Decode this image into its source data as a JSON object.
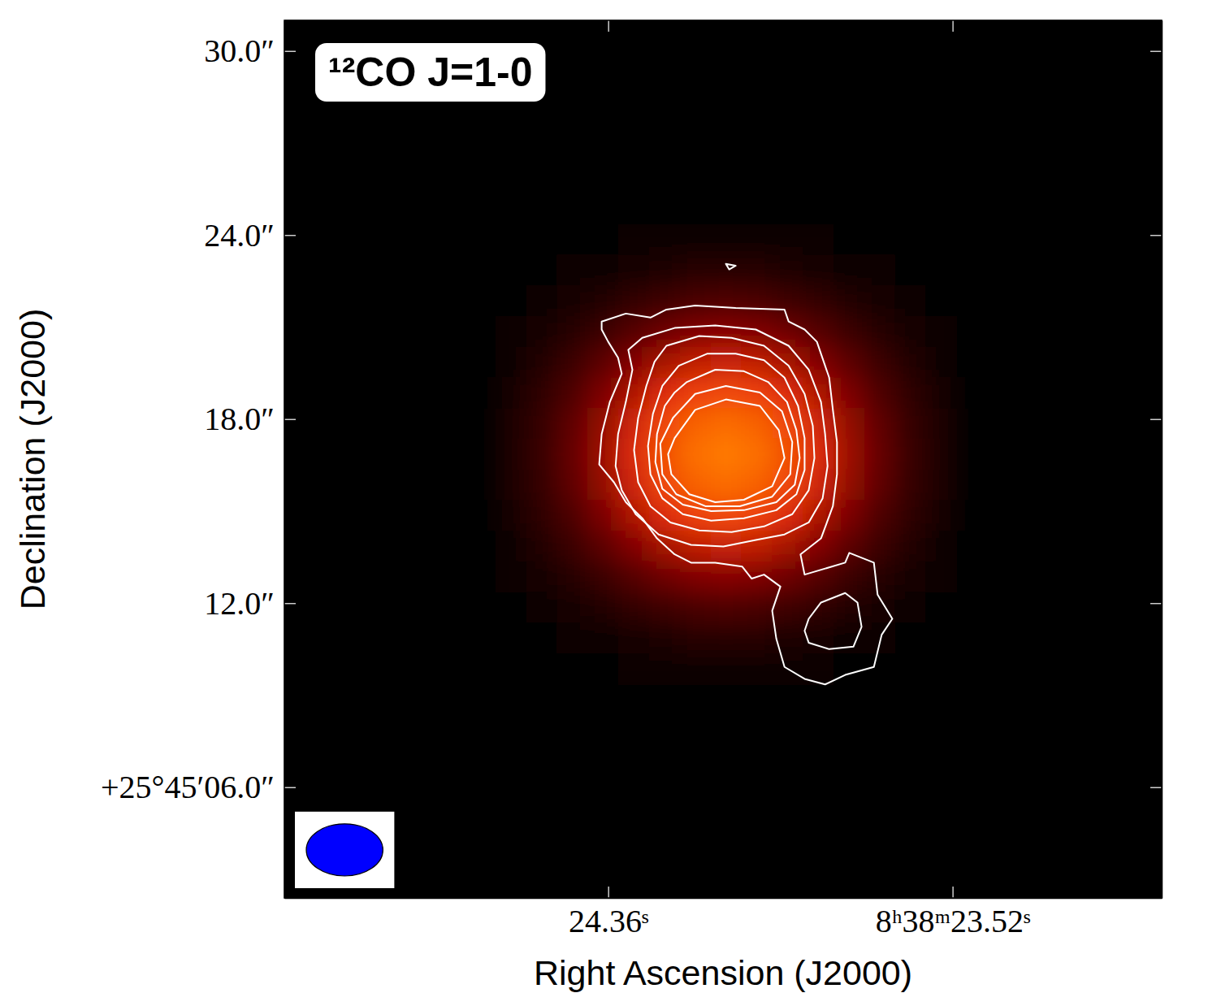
{
  "chart_data": {
    "type": "contour_image",
    "title": "¹²CO J=1-0",
    "x_label": "Right Ascension (J2000)",
    "y_label": "Declination (J2000)",
    "xlim": [
      25.15,
      23.01
    ],
    "ylim": [
      2.39,
      31.0
    ],
    "xticks": [
      {
        "value": 24.36,
        "label": "24.36ˢ"
      },
      {
        "value": 23.52,
        "label": "8ʰ38ᵐ23.52ˢ"
      }
    ],
    "yticks": [
      {
        "value": 6,
        "label": "+25°45′06.0″"
      },
      {
        "value": 12,
        "label": "12.0″"
      },
      {
        "value": 18,
        "label": "18.0″"
      },
      {
        "value": 24,
        "label": "24.0″"
      },
      {
        "value": 30,
        "label": "30.0″"
      }
    ],
    "image": {
      "x": [
        24.598,
        24.523,
        24.448,
        24.373,
        24.298,
        24.223,
        24.148,
        24.073,
        23.998,
        23.923,
        23.848,
        23.773,
        23.698,
        23.623,
        23.548
      ],
      "y": [
        23.86,
        22.86,
        21.86,
        20.86,
        19.86,
        18.86,
        17.86,
        16.86,
        15.86,
        14.86,
        13.86,
        12.86,
        11.86,
        10.86,
        9.86
      ],
      "values": [
        [
          0,
          0,
          0,
          0,
          0.001,
          0.001,
          0.002,
          0.002,
          0.002,
          0.001,
          0.001,
          0,
          0,
          0,
          0
        ],
        [
          0,
          0,
          0.001,
          0.002,
          0.004,
          0.007,
          0.01,
          0.011,
          0.01,
          0.007,
          0.004,
          0.002,
          0.001,
          0,
          0
        ],
        [
          0,
          0.001,
          0.003,
          0.008,
          0.017,
          0.029,
          0.04,
          0.044,
          0.04,
          0.029,
          0.017,
          0.008,
          0.003,
          0.001,
          0
        ],
        [
          0.001,
          0.003,
          0.01,
          0.026,
          0.053,
          0.089,
          0.122,
          0.135,
          0.122,
          0.089,
          0.053,
          0.026,
          0.01,
          0.003,
          0.001
        ],
        [
          0.002,
          0.008,
          0.025,
          0.062,
          0.128,
          0.215,
          0.293,
          0.325,
          0.293,
          0.215,
          0.128,
          0.062,
          0.025,
          0.008,
          0.002
        ],
        [
          0.004,
          0.015,
          0.046,
          0.116,
          0.24,
          0.402,
          0.548,
          0.607,
          0.548,
          0.402,
          0.24,
          0.116,
          0.046,
          0.015,
          0.004
        ],
        [
          0.005,
          0.021,
          0.067,
          0.168,
          0.348,
          0.584,
          0.796,
          0.882,
          0.796,
          0.584,
          0.348,
          0.168,
          0.067,
          0.021,
          0.005
        ],
        [
          0.006,
          0.024,
          0.076,
          0.191,
          0.395,
          0.662,
          0.902,
          1,
          0.902,
          0.662,
          0.395,
          0.191,
          0.076,
          0.024,
          0.006
        ],
        [
          0.005,
          0.021,
          0.067,
          0.168,
          0.348,
          0.584,
          0.796,
          0.882,
          0.796,
          0.584,
          0.348,
          0.168,
          0.067,
          0.021,
          0.005
        ],
        [
          0.004,
          0.015,
          0.046,
          0.116,
          0.24,
          0.402,
          0.548,
          0.607,
          0.548,
          0.402,
          0.24,
          0.116,
          0.046,
          0.015,
          0.004
        ],
        [
          0.002,
          0.008,
          0.025,
          0.062,
          0.128,
          0.215,
          0.293,
          0.325,
          0.293,
          0.215,
          0.128,
          0.062,
          0.025,
          0.008,
          0.002
        ],
        [
          0.001,
          0.003,
          0.01,
          0.026,
          0.053,
          0.089,
          0.122,
          0.135,
          0.122,
          0.089,
          0.053,
          0.026,
          0.01,
          0.003,
          0.001
        ],
        [
          0,
          0.001,
          0.003,
          0.008,
          0.017,
          0.029,
          0.04,
          0.044,
          0.04,
          0.029,
          0.017,
          0.008,
          0.003,
          0.001,
          0
        ],
        [
          0,
          0,
          0.001,
          0.002,
          0.004,
          0.007,
          0.01,
          0.011,
          0.01,
          0.007,
          0.004,
          0.002,
          0.001,
          0,
          0
        ],
        [
          0,
          0,
          0,
          0,
          0.001,
          0.001,
          0.002,
          0.002,
          0.002,
          0.001,
          0.001,
          0,
          0,
          0,
          0
        ]
      ],
      "zlim": [
        0,
        1
      ]
    },
    "contours": [
      {
        "x": [
          24.376,
          24.317,
          24.257,
          24.218,
          24.148,
          24.049,
          23.93,
          23.92,
          23.881,
          23.851,
          23.841,
          23.821,
          23.812,
          23.802,
          23.802,
          23.812,
          23.841,
          23.891,
          23.881,
          23.782,
          23.772,
          23.712,
          23.703,
          23.667,
          23.693,
          23.712,
          23.782,
          23.831,
          23.881,
          23.93,
          23.95,
          23.96,
          23.94,
          23.98,
          24.01,
          24.033,
          24.099,
          24.158,
          24.198,
          24.241,
          24.277,
          24.317,
          24.346,
          24.382,
          24.376,
          24.356,
          24.327,
          24.336,
          24.36,
          24.376
        ],
        "y": [
          21.18,
          21.44,
          21.31,
          21.57,
          21.7,
          21.62,
          21.57,
          21.18,
          20.92,
          20.52,
          20.13,
          19.35,
          18.3,
          17.25,
          16.2,
          15.16,
          14.11,
          13.59,
          12.93,
          13.32,
          13.64,
          13.32,
          12.28,
          11.49,
          10.97,
          9.92,
          9.66,
          9.35,
          9.53,
          9.92,
          10.84,
          11.75,
          12.54,
          12.93,
          12.8,
          13.19,
          13.32,
          13.32,
          13.59,
          14.11,
          14.77,
          15.29,
          15.94,
          16.52,
          17.51,
          18.56,
          19.48,
          20.0,
          20.52,
          20.92
        ]
      },
      {
        "x": [
          23.871,
          23.841,
          23.782,
          23.752,
          23.742,
          23.762,
          23.821,
          23.871,
          23.881
        ],
        "y": [
          11.49,
          12.02,
          12.33,
          12.02,
          11.23,
          10.58,
          10.5,
          10.71,
          11.1
        ]
      },
      {
        "x": [
          24.073,
          24.049,
          24.065
        ],
        "y": [
          23.06,
          23.0,
          22.88
        ]
      },
      {
        "x": [
          24.277,
          24.198,
          24.099,
          24.0,
          23.92,
          23.871,
          23.841,
          23.831,
          23.825,
          23.837,
          23.871,
          23.93,
          24.0,
          24.079,
          24.158,
          24.237,
          24.293,
          24.327,
          24.342,
          24.336,
          24.317,
          24.301,
          24.311
        ],
        "y": [
          20.65,
          20.97,
          21.05,
          20.92,
          20.39,
          19.61,
          18.56,
          17.51,
          16.47,
          15.42,
          14.63,
          14.24,
          14.06,
          13.85,
          13.9,
          14.24,
          14.9,
          15.68,
          16.47,
          17.51,
          18.56,
          19.61,
          20.26
        ]
      },
      {
        "x": [
          24.218,
          24.138,
          24.059,
          23.98,
          23.92,
          23.881,
          23.861,
          23.857,
          23.871,
          23.911,
          23.98,
          24.059,
          24.138,
          24.208,
          24.257,
          24.287,
          24.297,
          24.287,
          24.267,
          24.247
        ],
        "y": [
          20.39,
          20.71,
          20.65,
          20.39,
          19.74,
          18.82,
          17.78,
          16.73,
          15.68,
          14.9,
          14.5,
          14.32,
          14.37,
          14.63,
          15.16,
          15.94,
          16.99,
          18.04,
          19.08,
          19.87
        ]
      },
      {
        "x": [
          24.188,
          24.119,
          24.049,
          23.98,
          23.93,
          23.897,
          23.881,
          23.881,
          23.901,
          23.95,
          24.029,
          24.109,
          24.178,
          24.228,
          24.257,
          24.263,
          24.251,
          24.228
        ],
        "y": [
          19.74,
          20.13,
          20.13,
          19.92,
          19.35,
          18.43,
          17.38,
          16.34,
          15.55,
          15.03,
          14.77,
          14.69,
          14.9,
          15.42,
          16.2,
          17.12,
          18.17,
          19.08
        ]
      },
      {
        "x": [
          24.168,
          24.099,
          24.029,
          23.97,
          23.924,
          23.901,
          23.893,
          23.905,
          23.95,
          24.029,
          24.109,
          24.178,
          24.228,
          24.245,
          24.241,
          24.222,
          24.198
        ],
        "y": [
          19.21,
          19.61,
          19.56,
          19.21,
          18.56,
          17.64,
          16.73,
          15.86,
          15.29,
          15.03,
          15.0,
          15.21,
          15.73,
          16.6,
          17.51,
          18.43,
          18.87
        ]
      },
      {
        "x": [
          24.202,
          24.148,
          24.073,
          23.99,
          23.936,
          23.911,
          23.916,
          23.96,
          24.039,
          24.123,
          24.194,
          24.228,
          24.233
        ],
        "y": [
          18.04,
          18.82,
          19.08,
          18.87,
          18.25,
          17.25,
          16.2,
          15.47,
          15.16,
          15.16,
          15.55,
          16.2,
          17.2
        ]
      },
      {
        "x": [
          24.198,
          24.148,
          24.073,
          23.99,
          23.944,
          23.93,
          23.96,
          24.029,
          24.099,
          24.162,
          24.206,
          24.214
        ],
        "y": [
          17.38,
          18.3,
          18.64,
          18.43,
          17.64,
          16.73,
          15.81,
          15.37,
          15.29,
          15.55,
          16.2,
          16.86
        ]
      }
    ],
    "beam": {
      "major": 2.5,
      "minor": 1.7
    }
  }
}
